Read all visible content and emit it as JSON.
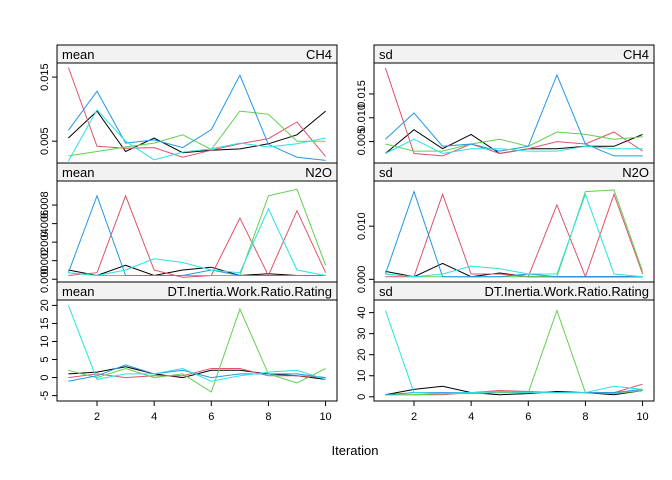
{
  "chart_data": {
    "type": "line",
    "xlabel": "Iteration",
    "x": [
      1,
      2,
      3,
      4,
      5,
      6,
      7,
      8,
      9,
      10
    ],
    "x_ticks": [
      2,
      4,
      6,
      8,
      10
    ],
    "series_colors": [
      "#000000",
      "#DF536B",
      "#61D04F",
      "#2297E6",
      "#28E2E5"
    ],
    "panels": [
      {
        "stat": "mean",
        "variable": "CH4",
        "ylim": [
          0.0016,
          0.0172
        ],
        "yticks": [
          0.005,
          0.015
        ],
        "ytick_labels": [
          "0.005",
          "0.015"
        ],
        "series": [
          [
            0.0055,
            0.0097,
            0.0034,
            0.0055,
            0.0032,
            0.0036,
            0.0038,
            0.0046,
            0.006,
            0.0097
          ],
          [
            0.0165,
            0.0042,
            0.0039,
            0.004,
            0.0025,
            0.0036,
            0.0046,
            0.0054,
            0.008,
            0.0026
          ],
          [
            0.0027,
            0.0034,
            0.0041,
            0.0047,
            0.006,
            0.0037,
            0.0097,
            0.0092,
            0.005,
            0.005
          ],
          [
            0.0067,
            0.0128,
            0.0047,
            0.0052,
            0.004,
            0.0068,
            0.0153,
            0.0045,
            0.0025,
            0.002
          ],
          [
            0.0019,
            0.0099,
            0.005,
            0.0021,
            0.0033,
            0.0038,
            0.0047,
            0.0041,
            0.0046,
            0.0055
          ]
        ]
      },
      {
        "stat": "sd",
        "variable": "CH4",
        "ylim": [
          0.0005,
          0.0215
        ],
        "yticks": [
          0.005,
          0.01,
          0.015
        ],
        "ytick_labels": [
          "0.005",
          "0.010",
          "0.015"
        ],
        "series": [
          [
            0.0025,
            0.0075,
            0.0035,
            0.0065,
            0.0025,
            0.0035,
            0.0035,
            0.004,
            0.004,
            0.0065
          ],
          [
            0.0205,
            0.0025,
            0.002,
            0.0045,
            0.0025,
            0.0035,
            0.005,
            0.0045,
            0.007,
            0.003
          ],
          [
            0.0045,
            0.003,
            0.003,
            0.0045,
            0.0055,
            0.004,
            0.007,
            0.0065,
            0.0055,
            0.006
          ],
          [
            0.0055,
            0.011,
            0.004,
            0.0045,
            0.003,
            0.004,
            0.019,
            0.0045,
            0.002,
            0.002
          ],
          [
            0.0025,
            0.0055,
            0.0025,
            0.0035,
            0.0035,
            0.003,
            0.003,
            0.004,
            0.0035,
            0.0035
          ]
        ]
      },
      {
        "stat": "mean",
        "variable": "N2O",
        "ylim": [
          -0.0003,
          0.0106
        ],
        "yticks": [
          0.0,
          0.002,
          0.004,
          0.006,
          0.008
        ],
        "ytick_labels": [
          "0.000",
          "0.002",
          "0.004",
          "0.006",
          "0.008"
        ],
        "series": [
          [
            0.001,
            0.0004,
            0.0015,
            0.0004,
            0.001,
            0.0013,
            0.0004,
            0.0006,
            0.0004,
            0.0004
          ],
          [
            0.0004,
            0.0007,
            0.009,
            0.001,
            0.0002,
            0.0004,
            0.0066,
            0.0004,
            0.0074,
            0.0007
          ],
          [
            0.0007,
            0.0004,
            0.0004,
            0.0004,
            0.0004,
            0.0004,
            0.0004,
            0.009,
            0.0097,
            0.0015
          ],
          [
            0.0007,
            0.009,
            0.0004,
            0.0004,
            0.0004,
            0.001,
            0.0004,
            0.0004,
            0.0004,
            0.0004
          ],
          [
            0.0007,
            0.0004,
            0.001,
            0.0022,
            0.0018,
            0.001,
            0.0007,
            0.0076,
            0.001,
            0.0004
          ]
        ]
      },
      {
        "stat": "sd",
        "variable": "N2O",
        "ylim": [
          -0.0005,
          0.0185
        ],
        "yticks": [
          0.0,
          0.01
        ],
        "ytick_labels": [
          "0.000",
          "0.010"
        ],
        "series": [
          [
            0.0015,
            0.0005,
            0.003,
            0.0005,
            0.0012,
            0.0005,
            0.0005,
            0.0005,
            0.0005,
            0.0005
          ],
          [
            0.0005,
            0.0005,
            0.016,
            0.001,
            0.001,
            0.0005,
            0.014,
            0.0005,
            0.016,
            0.001
          ],
          [
            0.001,
            0.0005,
            0.0005,
            0.0005,
            0.0005,
            0.0005,
            0.0005,
            0.0165,
            0.0168,
            0.0015
          ],
          [
            0.001,
            0.0165,
            0.0005,
            0.0005,
            0.0005,
            0.001,
            0.0005,
            0.0005,
            0.0005,
            0.0005
          ],
          [
            0.001,
            0.0005,
            0.001,
            0.0025,
            0.002,
            0.001,
            0.001,
            0.016,
            0.001,
            0.0005
          ]
        ]
      },
      {
        "stat": "mean",
        "variable": "DT.Inertia.Work.Ratio.Rating",
        "ylim": [
          -6.5,
          21.5
        ],
        "yticks": [
          -5,
          0,
          5,
          10,
          15,
          20
        ],
        "ytick_labels": [
          "-5",
          "0",
          "5",
          "10",
          "15",
          "20"
        ],
        "series": [
          [
            1.0,
            1.5,
            3.0,
            1.0,
            0.0,
            2.0,
            2.0,
            1.0,
            0.5,
            -0.5
          ],
          [
            0.0,
            1.0,
            0.0,
            0.5,
            0.5,
            2.5,
            2.5,
            0.5,
            0.5,
            0.0
          ],
          [
            2.0,
            0.0,
            2.5,
            0.0,
            1.0,
            -4.0,
            19.0,
            1.0,
            -1.5,
            2.5
          ],
          [
            -1.0,
            0.5,
            3.5,
            1.0,
            2.0,
            0.0,
            1.0,
            1.0,
            1.0,
            0.0
          ],
          [
            20.0,
            -0.5,
            1.0,
            1.0,
            2.5,
            -1.0,
            0.5,
            1.5,
            2.0,
            -0.5
          ]
        ]
      },
      {
        "stat": "sd",
        "variable": "DT.Inertia.Work.Ratio.Rating",
        "ylim": [
          -2.0,
          46.0
        ],
        "yticks": [
          0,
          10,
          20,
          30,
          40
        ],
        "ytick_labels": [
          "0",
          "10",
          "20",
          "30",
          "40"
        ],
        "series": [
          [
            1.0,
            3.5,
            5.0,
            2.0,
            1.0,
            1.5,
            2.5,
            2.0,
            1.0,
            3.0
          ],
          [
            1.0,
            1.0,
            1.0,
            2.0,
            3.0,
            2.5,
            2.0,
            2.0,
            2.0,
            6.0
          ],
          [
            1.0,
            1.0,
            1.5,
            1.5,
            2.0,
            2.0,
            41.0,
            2.0,
            1.5,
            3.0
          ],
          [
            1.0,
            2.0,
            2.0,
            2.0,
            2.5,
            2.0,
            2.0,
            2.0,
            2.0,
            3.5
          ],
          [
            41.0,
            2.0,
            1.5,
            2.0,
            2.5,
            2.0,
            2.0,
            2.0,
            5.0,
            3.5
          ]
        ]
      }
    ]
  }
}
